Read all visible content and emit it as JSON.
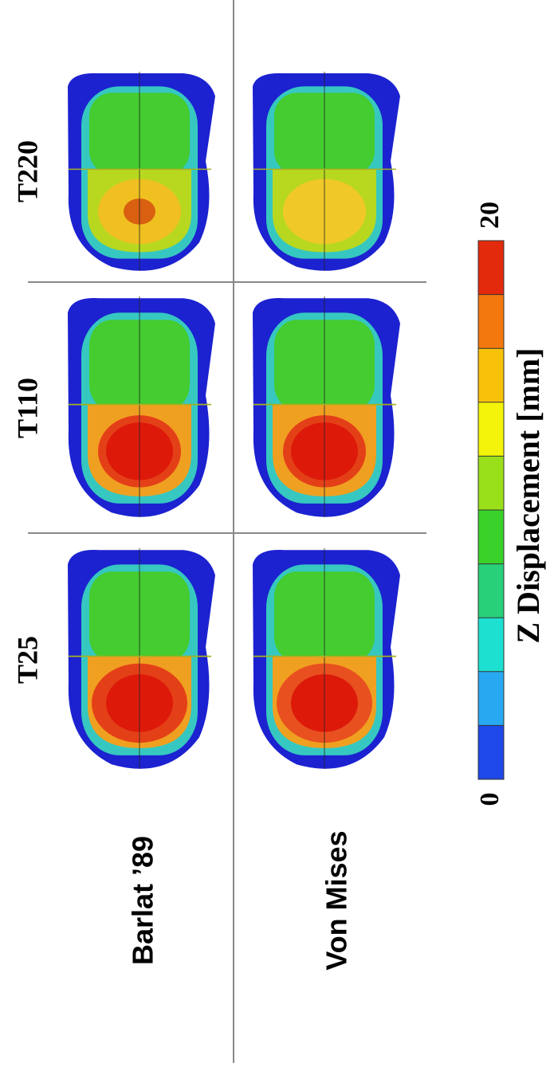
{
  "column_labels": [
    "T220",
    "T110",
    "T25"
  ],
  "row_labels": [
    "Barlat ’89",
    "Von Mises"
  ],
  "colorbar": {
    "title": "Z Displacement [mm]",
    "min": 0,
    "max": 20
  }
}
